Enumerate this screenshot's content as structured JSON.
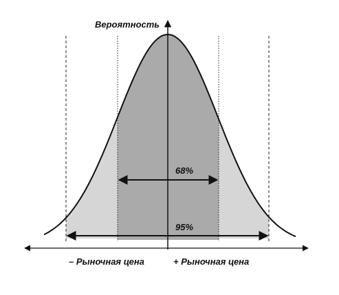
{
  "diagram": {
    "y_axis_label": "Вероятность",
    "interval_68_label": "68%",
    "interval_95_label": "95%",
    "x_label_minus": "– Рыночная цена",
    "x_label_plus": "+ Рыночная цена"
  },
  "colors": {
    "inner_fill": "#aaaaaa",
    "outer_fill": "#d6d6d6",
    "curve": "#111111",
    "background": "#ffffff"
  }
}
